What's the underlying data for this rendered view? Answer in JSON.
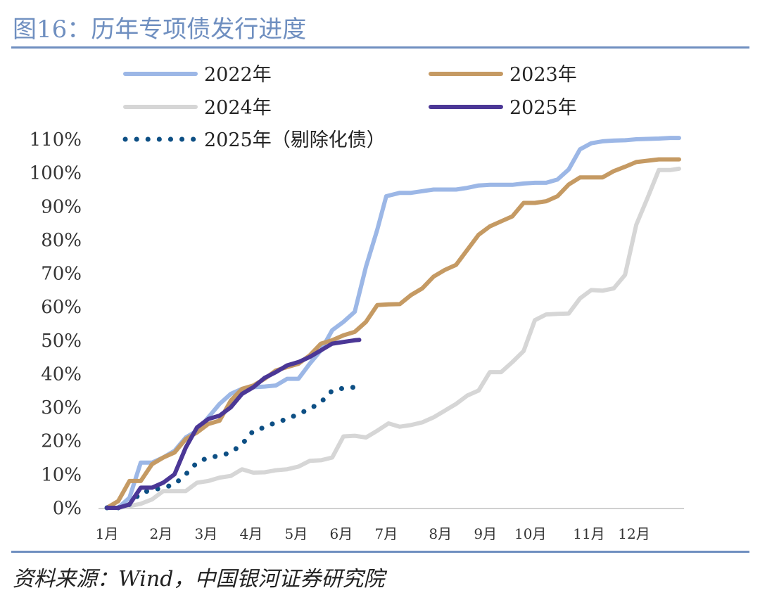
{
  "figure_title": "图16：历年专项债发行进度",
  "source": "资料来源：Wind，中国银河证券研究院",
  "colors": {
    "accent": "#6f8fc0",
    "s2022": "#9cb7e6",
    "s2023": "#c59a63",
    "s2024": "#d6d6d6",
    "s2025": "#4b3796",
    "s2025ex": "#0d4f84"
  },
  "chart_data": {
    "type": "line",
    "title": "",
    "xlabel": "",
    "ylabel": "",
    "xlim": [
      0,
      12.7
    ],
    "ylim": [
      0,
      110
    ],
    "yticks": [
      0,
      10,
      20,
      30,
      40,
      50,
      60,
      70,
      80,
      90,
      100,
      110
    ],
    "ytick_labels": [
      "0%",
      "10%",
      "20%",
      "30%",
      "40%",
      "50%",
      "60%",
      "70%",
      "80%",
      "90%",
      "100%",
      "110%"
    ],
    "xticks": [
      {
        "x": 0.0,
        "label": "1月"
      },
      {
        "x": 1.2,
        "label": "2月"
      },
      {
        "x": 2.2,
        "label": "3月"
      },
      {
        "x": 3.2,
        "label": "4月"
      },
      {
        "x": 4.2,
        "label": "5月"
      },
      {
        "x": 5.2,
        "label": "6月"
      },
      {
        "x": 6.2,
        "label": "7月"
      },
      {
        "x": 7.4,
        "label": "8月"
      },
      {
        "x": 8.4,
        "label": "9月"
      },
      {
        "x": 9.4,
        "label": "10月"
      },
      {
        "x": 10.7,
        "label": "11月"
      },
      {
        "x": 11.7,
        "label": "12月"
      }
    ],
    "legend_position": "top",
    "series": [
      {
        "name": "2022年",
        "style": "solid",
        "color": "#9cb7e6",
        "points": [
          [
            0,
            0
          ],
          [
            0.25,
            0
          ],
          [
            0.5,
            3
          ],
          [
            0.75,
            13.5
          ],
          [
            1.0,
            13.5
          ],
          [
            1.25,
            15
          ],
          [
            1.5,
            17
          ],
          [
            1.75,
            21
          ],
          [
            2.0,
            23
          ],
          [
            2.25,
            27
          ],
          [
            2.5,
            31
          ],
          [
            2.75,
            34
          ],
          [
            3.0,
            35.5
          ],
          [
            3.25,
            36
          ],
          [
            3.5,
            36.2
          ],
          [
            3.75,
            36.5
          ],
          [
            4.0,
            38.5
          ],
          [
            4.25,
            38.5
          ],
          [
            4.5,
            43
          ],
          [
            4.75,
            47
          ],
          [
            5.0,
            53
          ],
          [
            5.25,
            55.5
          ],
          [
            5.5,
            58.5
          ],
          [
            5.75,
            72
          ],
          [
            6.0,
            83
          ],
          [
            6.2,
            93
          ],
          [
            6.5,
            94
          ],
          [
            6.75,
            94
          ],
          [
            7.0,
            94.5
          ],
          [
            7.25,
            95
          ],
          [
            7.5,
            95
          ],
          [
            7.75,
            95
          ],
          [
            8.0,
            95.5
          ],
          [
            8.25,
            96.2
          ],
          [
            8.5,
            96.4
          ],
          [
            8.75,
            96.4
          ],
          [
            9.0,
            96.4
          ],
          [
            9.25,
            96.8
          ],
          [
            9.5,
            97
          ],
          [
            9.75,
            97
          ],
          [
            10.0,
            98
          ],
          [
            10.25,
            101
          ],
          [
            10.5,
            107
          ],
          [
            10.75,
            108.8
          ],
          [
            11.0,
            109.4
          ],
          [
            11.25,
            109.6
          ],
          [
            11.5,
            109.7
          ],
          [
            11.75,
            110
          ],
          [
            12.0,
            110.1
          ],
          [
            12.25,
            110.2
          ],
          [
            12.5,
            110.4
          ],
          [
            12.7,
            110.4
          ]
        ]
      },
      {
        "name": "2023年",
        "style": "solid",
        "color": "#c59a63",
        "points": [
          [
            0,
            0
          ],
          [
            0.25,
            2
          ],
          [
            0.5,
            8
          ],
          [
            0.75,
            8
          ],
          [
            1.0,
            13
          ],
          [
            1.25,
            15
          ],
          [
            1.5,
            16.5
          ],
          [
            1.75,
            20.5
          ],
          [
            2.0,
            22.5
          ],
          [
            2.25,
            25
          ],
          [
            2.5,
            26
          ],
          [
            2.75,
            32
          ],
          [
            3.0,
            35.5
          ],
          [
            3.25,
            36.5
          ],
          [
            3.5,
            38.5
          ],
          [
            3.75,
            41
          ],
          [
            4.0,
            42
          ],
          [
            4.25,
            43
          ],
          [
            4.5,
            45.5
          ],
          [
            4.75,
            49
          ],
          [
            5.0,
            50
          ],
          [
            5.25,
            51.5
          ],
          [
            5.5,
            52.5
          ],
          [
            5.75,
            55.5
          ],
          [
            6.0,
            60.5
          ],
          [
            6.25,
            60.7
          ],
          [
            6.5,
            60.8
          ],
          [
            6.75,
            63.5
          ],
          [
            7.0,
            65.5
          ],
          [
            7.25,
            69
          ],
          [
            7.5,
            71
          ],
          [
            7.75,
            72.5
          ],
          [
            8.0,
            77
          ],
          [
            8.25,
            81.5
          ],
          [
            8.5,
            84
          ],
          [
            8.75,
            85.5
          ],
          [
            9.0,
            87
          ],
          [
            9.25,
            91
          ],
          [
            9.5,
            91
          ],
          [
            9.75,
            91.5
          ],
          [
            10.0,
            93
          ],
          [
            10.25,
            96.5
          ],
          [
            10.5,
            98.6
          ],
          [
            10.75,
            98.6
          ],
          [
            11.0,
            98.6
          ],
          [
            11.25,
            100.5
          ],
          [
            11.5,
            101.8
          ],
          [
            11.75,
            103.2
          ],
          [
            12.0,
            103.6
          ],
          [
            12.25,
            104
          ],
          [
            12.5,
            104
          ],
          [
            12.7,
            104
          ]
        ]
      },
      {
        "name": "2024年",
        "style": "solid",
        "color": "#d6d6d6",
        "points": [
          [
            0,
            0
          ],
          [
            0.25,
            0
          ],
          [
            0.5,
            0.5
          ],
          [
            0.75,
            1.2
          ],
          [
            1.0,
            2.5
          ],
          [
            1.25,
            5
          ],
          [
            1.5,
            5
          ],
          [
            1.75,
            5
          ],
          [
            2.0,
            7.5
          ],
          [
            2.25,
            8
          ],
          [
            2.5,
            9
          ],
          [
            2.75,
            9.5
          ],
          [
            3.0,
            11.5
          ],
          [
            3.25,
            10.5
          ],
          [
            3.5,
            10.6
          ],
          [
            3.75,
            11.2
          ],
          [
            4.0,
            11.5
          ],
          [
            4.25,
            12.3
          ],
          [
            4.5,
            14
          ],
          [
            4.75,
            14.2
          ],
          [
            5.0,
            15
          ],
          [
            5.25,
            21.3
          ],
          [
            5.5,
            21.5
          ],
          [
            5.75,
            21
          ],
          [
            6.0,
            23
          ],
          [
            6.25,
            25.2
          ],
          [
            6.5,
            24.2
          ],
          [
            6.75,
            24.7
          ],
          [
            7.0,
            25.5
          ],
          [
            7.25,
            27
          ],
          [
            7.5,
            29
          ],
          [
            7.75,
            31
          ],
          [
            8.0,
            33.5
          ],
          [
            8.25,
            35
          ],
          [
            8.5,
            40.5
          ],
          [
            8.75,
            40.5
          ],
          [
            9.0,
            43.5
          ],
          [
            9.25,
            46.8
          ],
          [
            9.5,
            56
          ],
          [
            9.75,
            57.7
          ],
          [
            10.0,
            57.9
          ],
          [
            10.25,
            58
          ],
          [
            10.5,
            62.5
          ],
          [
            10.75,
            65
          ],
          [
            11.0,
            64.8
          ],
          [
            11.25,
            65.5
          ],
          [
            11.5,
            69.5
          ],
          [
            11.75,
            84.5
          ],
          [
            12.0,
            92.5
          ],
          [
            12.25,
            100.8
          ],
          [
            12.5,
            100.8
          ],
          [
            12.7,
            101.2
          ]
        ]
      },
      {
        "name": "2025年",
        "style": "solid",
        "color": "#4b3796",
        "points": [
          [
            0,
            0
          ],
          [
            0.25,
            0
          ],
          [
            0.5,
            1
          ],
          [
            0.75,
            6
          ],
          [
            1.0,
            6
          ],
          [
            1.25,
            7.5
          ],
          [
            1.5,
            10
          ],
          [
            1.75,
            18
          ],
          [
            2.0,
            24
          ],
          [
            2.25,
            26.5
          ],
          [
            2.5,
            27.5
          ],
          [
            2.75,
            30
          ],
          [
            3.0,
            34
          ],
          [
            3.25,
            36
          ],
          [
            3.5,
            38.8
          ],
          [
            3.75,
            40.5
          ],
          [
            4.0,
            42.5
          ],
          [
            4.25,
            43.5
          ],
          [
            4.5,
            45
          ],
          [
            4.75,
            47
          ],
          [
            5.0,
            49
          ],
          [
            5.25,
            49.5
          ],
          [
            5.5,
            50
          ],
          [
            5.6,
            50.1
          ]
        ]
      },
      {
        "name": "2025年（剔除化债）",
        "style": "dotted",
        "color": "#0d4f84",
        "points": [
          [
            0,
            0
          ],
          [
            0.25,
            0
          ],
          [
            0.5,
            1
          ],
          [
            0.75,
            4.5
          ],
          [
            1.0,
            5.3
          ],
          [
            1.25,
            6
          ],
          [
            1.5,
            7
          ],
          [
            1.75,
            10
          ],
          [
            2.0,
            13.5
          ],
          [
            2.25,
            15
          ],
          [
            2.5,
            15.5
          ],
          [
            2.75,
            16.5
          ],
          [
            3.0,
            19
          ],
          [
            3.25,
            23
          ],
          [
            3.5,
            24
          ],
          [
            3.75,
            25.5
          ],
          [
            4.0,
            26.5
          ],
          [
            4.25,
            28
          ],
          [
            4.5,
            29.5
          ],
          [
            4.75,
            31.5
          ],
          [
            5.0,
            35
          ],
          [
            5.25,
            35.7
          ],
          [
            5.5,
            36
          ]
        ]
      }
    ]
  }
}
